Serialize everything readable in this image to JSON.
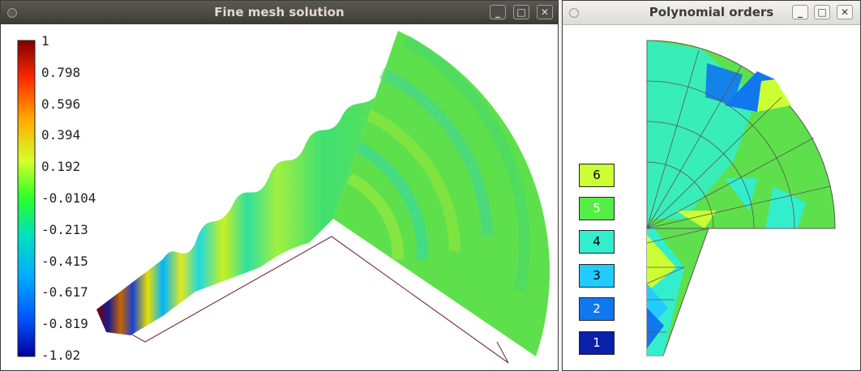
{
  "windows": [
    {
      "title": "Fine mesh solution",
      "buttons": [
        "_",
        "□",
        "✕"
      ]
    },
    {
      "title": "Polynomial orders",
      "buttons": [
        "_",
        "□",
        "✕"
      ]
    }
  ],
  "colorbar": {
    "ticks": [
      "1",
      "0.798",
      "0.596",
      "0.394",
      "0.192",
      "-0.0104",
      "-0.213",
      "-0.415",
      "-0.617",
      "-0.819",
      "-1.02"
    ],
    "colors": [
      "#7f0000",
      "#ff2a00",
      "#ffaa00",
      "#d4ff2a",
      "#2aff2a",
      "#00e0c0",
      "#00aaff",
      "#0055ff",
      "#00009f"
    ]
  },
  "orders_legend": [
    {
      "label": "6",
      "color": "#ccff33",
      "text_color": "#000000"
    },
    {
      "label": "5",
      "color": "#55ee44",
      "text_color": "#ffffff"
    },
    {
      "label": "4",
      "color": "#33eecc",
      "text_color": "#000000"
    },
    {
      "label": "3",
      "color": "#22ccff",
      "text_color": "#000000"
    },
    {
      "label": "2",
      "color": "#1177ee",
      "text_color": "#ffffff"
    },
    {
      "label": "1",
      "color": "#0a1faa",
      "text_color": "#ffffff"
    }
  ]
}
